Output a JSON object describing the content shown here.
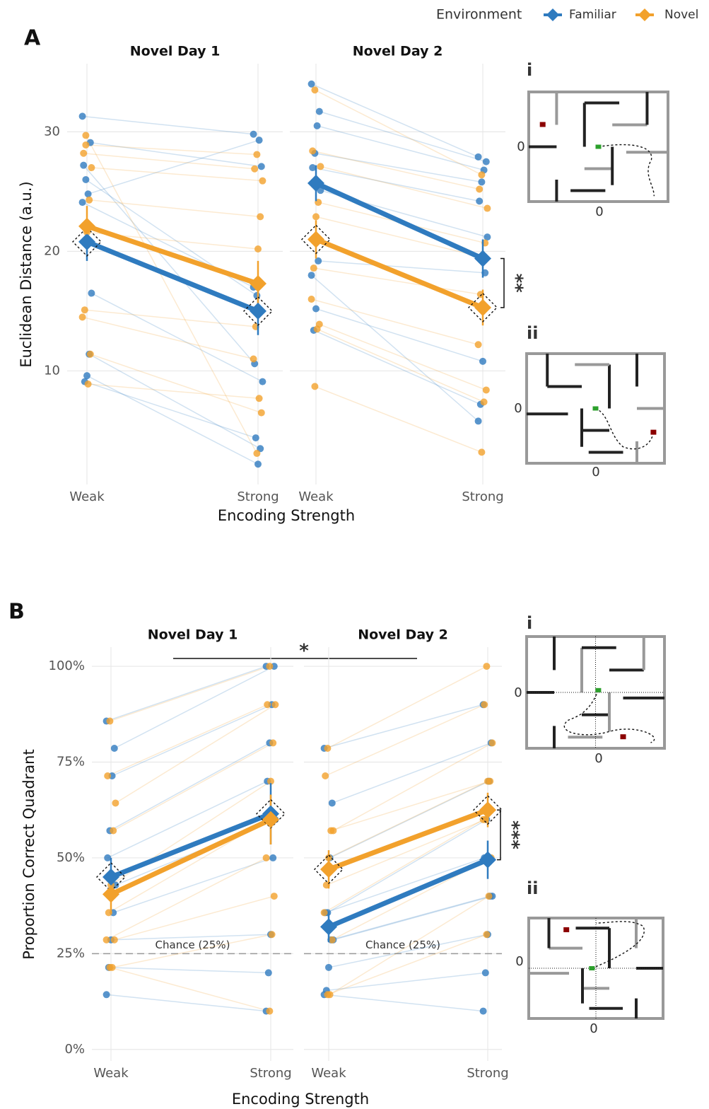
{
  "figure": {
    "legend_title": "Environment",
    "panels": [
      {
        "letter": "A",
        "ylabel": "Euclidean Distance (a.u.)",
        "xlabel": "Encoding Strength",
        "insets": [
          {
            "label": "i",
            "x_label": "0",
            "y_label": "0"
          },
          {
            "label": "ii",
            "x_label": "0",
            "y_label": "0"
          }
        ]
      },
      {
        "letter": "B",
        "ylabel": "Proportion Correct Quadrant",
        "xlabel": "Encoding Strength",
        "significance": "*",
        "insets": [
          {
            "label": "i",
            "x_label": "0",
            "y_label": "0"
          },
          {
            "label": "ii",
            "x_label": "0",
            "y_label": "0"
          }
        ]
      }
    ]
  },
  "chart_data": [
    {
      "type": "line",
      "title": "Novel Day 1",
      "categories": [
        "Weak",
        "Strong"
      ],
      "ylim": [
        0.5,
        35.7
      ],
      "yticks": [
        10,
        20,
        30
      ],
      "grid": true,
      "series": [
        {
          "name": "Familiar",
          "color": "#2f7bbf",
          "outlined": true,
          "values": [
            20.8,
            15.0
          ],
          "errors": [
            1.6,
            2.0
          ],
          "points": [
            [
              31.3,
              29.8
            ],
            [
              29.1,
              27.1
            ],
            [
              24.8,
              29.3
            ],
            [
              26.0,
              16.3
            ],
            [
              27.2,
              10.6
            ],
            [
              16.5,
              9.1
            ],
            [
              11.4,
              3.5
            ],
            [
              9.6,
              2.2
            ],
            [
              9.1,
              4.4
            ],
            [
              24.1,
              17.0
            ]
          ]
        },
        {
          "name": "Novel",
          "color": "#f2a12c",
          "outlined": false,
          "values": [
            22.1,
            17.3
          ],
          "errors": [
            1.7,
            1.9
          ],
          "points": [
            [
              28.9,
              28.1
            ],
            [
              28.2,
              26.9
            ],
            [
              27.0,
              25.9
            ],
            [
              24.3,
              22.9
            ],
            [
              21.6,
              20.2
            ],
            [
              15.1,
              13.7
            ],
            [
              14.5,
              11.0
            ],
            [
              11.4,
              6.5
            ],
            [
              8.9,
              7.7
            ],
            [
              29.7,
              3.1
            ]
          ]
        }
      ]
    },
    {
      "type": "line",
      "title": "Novel Day 2",
      "categories": [
        "Weak",
        "Strong"
      ],
      "ylim": [
        0.5,
        35.7
      ],
      "yticks": [
        10,
        20,
        30
      ],
      "grid": true,
      "annotation": "**",
      "series": [
        {
          "name": "Familiar",
          "color": "#2f7bbf",
          "outlined": false,
          "values": [
            25.7,
            19.4
          ],
          "errors": [
            1.5,
            1.6
          ],
          "points": [
            [
              34.0,
              27.9
            ],
            [
              31.7,
              27.5
            ],
            [
              30.5,
              26.8
            ],
            [
              28.2,
              25.8
            ],
            [
              27.0,
              24.2
            ],
            [
              25.1,
              21.2
            ],
            [
              19.2,
              18.2
            ],
            [
              15.2,
              10.8
            ],
            [
              13.4,
              7.2
            ],
            [
              18.0,
              5.8
            ]
          ]
        },
        {
          "name": "Novel",
          "color": "#f2a12c",
          "outlined": true,
          "values": [
            21.0,
            15.3
          ],
          "errors": [
            1.6,
            1.5
          ],
          "points": [
            [
              33.5,
              26.4
            ],
            [
              28.4,
              25.2
            ],
            [
              27.1,
              23.6
            ],
            [
              24.1,
              20.7
            ],
            [
              22.9,
              19.5
            ],
            [
              18.6,
              16.4
            ],
            [
              16.0,
              12.2
            ],
            [
              13.9,
              8.4
            ],
            [
              13.5,
              7.4
            ],
            [
              8.7,
              3.2
            ]
          ]
        }
      ]
    },
    {
      "type": "line",
      "title": "Novel Day 1",
      "categories": [
        "Weak",
        "Strong"
      ],
      "ylim": [
        -3,
        105
      ],
      "yticks": [
        {
          "value": 0,
          "label": "0%"
        },
        {
          "value": 25,
          "label": "25%"
        },
        {
          "value": 50,
          "label": "50%"
        },
        {
          "value": 75,
          "label": "75%"
        },
        {
          "value": 100,
          "label": "100%"
        }
      ],
      "grid": true,
      "hline": {
        "value": 25,
        "label": "Chance (25%)"
      },
      "series": [
        {
          "name": "Familiar",
          "color": "#2f7bbf",
          "outlined": true,
          "values": [
            45,
            61.5
          ],
          "errors": [
            5,
            8
          ],
          "points": [
            [
              85.7,
              100
            ],
            [
              78.6,
              100
            ],
            [
              71.4,
              90
            ],
            [
              57.1,
              80
            ],
            [
              50,
              70
            ],
            [
              42.9,
              60
            ],
            [
              35.7,
              50
            ],
            [
              28.6,
              30
            ],
            [
              21.4,
              20
            ],
            [
              14.3,
              10
            ]
          ]
        },
        {
          "name": "Novel",
          "color": "#f2a12c",
          "outlined": false,
          "values": [
            40.5,
            60
          ],
          "errors": [
            5,
            6.5
          ],
          "points": [
            [
              85.7,
              100
            ],
            [
              71.4,
              90
            ],
            [
              64.3,
              90
            ],
            [
              57.1,
              80
            ],
            [
              42.9,
              70
            ],
            [
              35.7,
              60
            ],
            [
              28.6,
              50
            ],
            [
              28.6,
              40
            ],
            [
              21.4,
              30
            ],
            [
              21.4,
              10
            ]
          ]
        }
      ]
    },
    {
      "type": "line",
      "title": "Novel Day 2",
      "categories": [
        "Weak",
        "Strong"
      ],
      "ylim": [
        -3,
        105
      ],
      "yticks": [
        0,
        25,
        50,
        75,
        100
      ],
      "grid": true,
      "annotation": "***",
      "hline": {
        "value": 25,
        "label": "Chance (25%)"
      },
      "series": [
        {
          "name": "Familiar",
          "color": "#2f7bbf",
          "outlined": false,
          "values": [
            32,
            49.5
          ],
          "errors": [
            4,
            5
          ],
          "points": [
            [
              78.6,
              90
            ],
            [
              64.3,
              80
            ],
            [
              50,
              70
            ],
            [
              35.7,
              60
            ],
            [
              35.7,
              50
            ],
            [
              28.6,
              40
            ],
            [
              28.6,
              40
            ],
            [
              21.4,
              30
            ],
            [
              15.4,
              20
            ],
            [
              14.3,
              10
            ]
          ]
        },
        {
          "name": "Novel",
          "color": "#f2a12c",
          "outlined": true,
          "values": [
            47,
            62.5
          ],
          "errors": [
            5,
            4.5
          ],
          "points": [
            [
              78.6,
              100
            ],
            [
              71.4,
              90
            ],
            [
              57.1,
              80
            ],
            [
              57.1,
              70
            ],
            [
              50,
              70
            ],
            [
              42.9,
              60
            ],
            [
              35.7,
              60
            ],
            [
              28.6,
              50
            ],
            [
              14.3,
              40
            ],
            [
              14.3,
              30
            ]
          ]
        }
      ]
    }
  ]
}
